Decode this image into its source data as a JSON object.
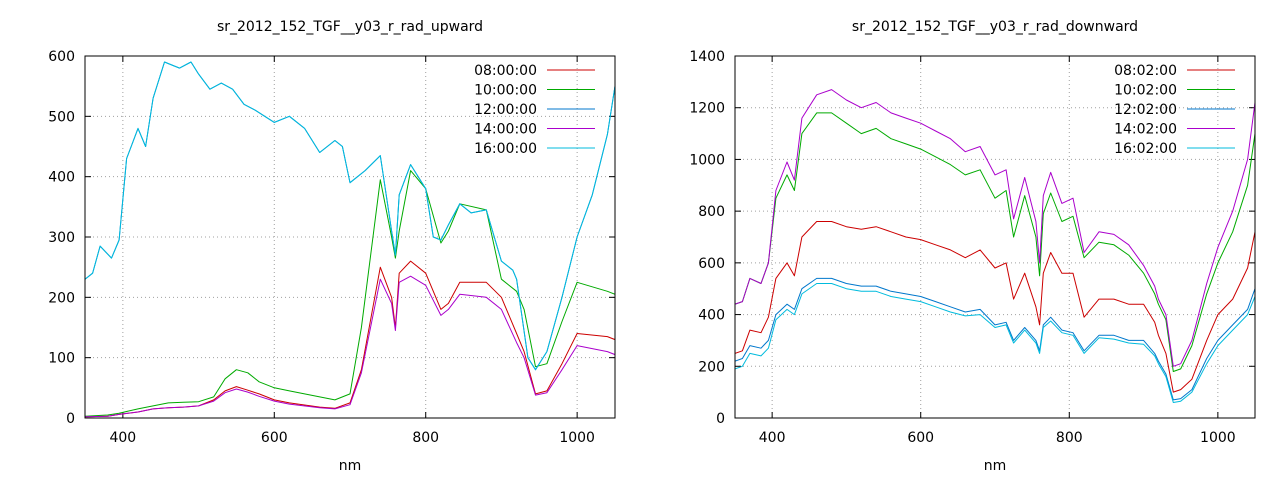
{
  "chart_data": [
    {
      "type": "line",
      "title": "sr_2012_152_TGF__y03_r_rad_upward",
      "xlabel": "nm",
      "ylabel": "",
      "xlim": [
        350,
        1050
      ],
      "ylim": [
        0,
        600
      ],
      "xticks": [
        400,
        600,
        800,
        1000
      ],
      "yticks": [
        0,
        100,
        200,
        300,
        400,
        500,
        600
      ],
      "grid": true,
      "legend_position": "top-right",
      "series": [
        {
          "name": "08:00:00",
          "color": "#cc0000",
          "x": [
            350,
            380,
            395,
            420,
            440,
            460,
            480,
            500,
            520,
            535,
            550,
            565,
            580,
            600,
            620,
            660,
            680,
            700,
            715,
            740,
            755,
            760,
            765,
            780,
            800,
            820,
            830,
            845,
            880,
            900,
            920,
            930,
            945,
            960,
            980,
            1000,
            1040,
            1050
          ],
          "y": [
            2,
            3,
            6,
            10,
            15,
            17,
            18,
            20,
            30,
            45,
            52,
            46,
            40,
            30,
            25,
            18,
            16,
            25,
            80,
            250,
            200,
            150,
            240,
            260,
            240,
            180,
            190,
            225,
            225,
            200,
            140,
            110,
            40,
            45,
            90,
            140,
            135,
            130
          ]
        },
        {
          "name": "10:00:00",
          "color": "#00aa00",
          "x": [
            350,
            380,
            395,
            420,
            440,
            460,
            480,
            500,
            520,
            535,
            550,
            565,
            580,
            600,
            620,
            660,
            680,
            700,
            715,
            740,
            755,
            760,
            765,
            780,
            800,
            820,
            830,
            845,
            880,
            900,
            920,
            930,
            945,
            960,
            980,
            1000,
            1040,
            1050
          ],
          "y": [
            3,
            5,
            8,
            15,
            20,
            25,
            26,
            27,
            35,
            65,
            80,
            75,
            60,
            50,
            45,
            35,
            30,
            40,
            150,
            395,
            300,
            265,
            310,
            410,
            380,
            290,
            310,
            355,
            345,
            230,
            210,
            180,
            85,
            90,
            160,
            225,
            210,
            205
          ]
        },
        {
          "name": "12:00:00",
          "color": "#0077cc",
          "x": [
            350,
            360,
            370,
            385,
            395,
            405,
            420,
            430,
            440,
            455,
            465,
            475,
            490,
            500,
            515,
            530,
            545,
            560,
            575,
            600,
            620,
            640,
            660,
            680,
            690,
            700,
            720,
            740,
            755,
            760,
            765,
            780,
            800,
            810,
            820,
            830,
            845,
            860,
            880,
            900,
            915,
            920,
            935,
            945,
            960,
            980,
            1000,
            1020,
            1040,
            1050
          ],
          "y": [
            230,
            240,
            285,
            265,
            295,
            430,
            480,
            450,
            530,
            590,
            585,
            580,
            590,
            570,
            545,
            555,
            545,
            520,
            510,
            490,
            500,
            480,
            440,
            460,
            450,
            390,
            410,
            435,
            310,
            270,
            370,
            420,
            380,
            300,
            295,
            320,
            355,
            340,
            345,
            260,
            245,
            230,
            100,
            80,
            110,
            200,
            300,
            370,
            470,
            550
          ]
        },
        {
          "name": "14:00:00",
          "color": "#aa00cc",
          "x": [
            350,
            380,
            395,
            420,
            440,
            460,
            480,
            500,
            520,
            535,
            550,
            565,
            580,
            600,
            620,
            660,
            680,
            700,
            715,
            740,
            755,
            760,
            765,
            780,
            800,
            820,
            830,
            845,
            880,
            900,
            920,
            930,
            945,
            960,
            980,
            1000,
            1040,
            1050
          ],
          "y": [
            2,
            3,
            6,
            10,
            15,
            17,
            18,
            20,
            28,
            42,
            48,
            43,
            36,
            28,
            23,
            17,
            15,
            22,
            75,
            230,
            190,
            145,
            225,
            235,
            220,
            170,
            180,
            205,
            200,
            180,
            125,
            100,
            38,
            42,
            80,
            120,
            110,
            105
          ]
        },
        {
          "name": "16:00:00",
          "color": "#00bbdd",
          "x": [
            350,
            360,
            370,
            385,
            395,
            405,
            420,
            430,
            440,
            455,
            465,
            475,
            490,
            500,
            515,
            530,
            545,
            560,
            575,
            600,
            620,
            640,
            660,
            680,
            690,
            700,
            720,
            740,
            755,
            760,
            765,
            780,
            800,
            810,
            820,
            830,
            845,
            860,
            880,
            900,
            915,
            920,
            935,
            945,
            960,
            980,
            1000,
            1020,
            1040,
            1050
          ],
          "y": [
            230,
            240,
            285,
            265,
            295,
            430,
            480,
            450,
            530,
            590,
            585,
            580,
            590,
            570,
            545,
            555,
            545,
            520,
            510,
            490,
            500,
            480,
            440,
            460,
            450,
            390,
            410,
            435,
            310,
            270,
            370,
            420,
            380,
            300,
            295,
            320,
            355,
            340,
            345,
            260,
            245,
            230,
            100,
            80,
            110,
            200,
            300,
            370,
            470,
            550
          ]
        }
      ]
    },
    {
      "type": "line",
      "title": "sr_2012_152_TGF__y03_r_rad_downward",
      "xlabel": "nm",
      "ylabel": "",
      "xlim": [
        350,
        1050
      ],
      "ylim": [
        0,
        1400
      ],
      "xticks": [
        400,
        600,
        800,
        1000
      ],
      "yticks": [
        0,
        200,
        400,
        600,
        800,
        1000,
        1200,
        1400
      ],
      "grid": true,
      "legend_position": "top-right",
      "series": [
        {
          "name": "08:02:00",
          "color": "#cc0000",
          "x": [
            350,
            360,
            370,
            385,
            395,
            405,
            420,
            430,
            440,
            460,
            480,
            500,
            520,
            540,
            560,
            580,
            600,
            620,
            640,
            660,
            680,
            700,
            715,
            725,
            740,
            755,
            760,
            765,
            775,
            790,
            805,
            820,
            840,
            860,
            880,
            900,
            915,
            920,
            930,
            940,
            950,
            965,
            985,
            1000,
            1020,
            1040,
            1050
          ],
          "y": [
            250,
            260,
            340,
            330,
            390,
            540,
            600,
            550,
            700,
            760,
            760,
            740,
            730,
            740,
            720,
            700,
            690,
            670,
            650,
            620,
            650,
            580,
            600,
            460,
            560,
            430,
            360,
            560,
            640,
            560,
            560,
            390,
            460,
            460,
            440,
            440,
            370,
            320,
            250,
            100,
            110,
            150,
            300,
            400,
            460,
            580,
            720
          ]
        },
        {
          "name": "10:02:00",
          "color": "#00aa00",
          "x": [
            350,
            360,
            370,
            385,
            395,
            405,
            420,
            430,
            440,
            460,
            480,
            500,
            520,
            540,
            560,
            580,
            600,
            620,
            640,
            660,
            680,
            700,
            715,
            725,
            740,
            755,
            760,
            765,
            775,
            790,
            805,
            820,
            840,
            860,
            880,
            900,
            915,
            920,
            930,
            940,
            950,
            965,
            985,
            1000,
            1020,
            1040,
            1050
          ],
          "y": [
            440,
            450,
            540,
            520,
            600,
            850,
            940,
            880,
            1100,
            1180,
            1180,
            1140,
            1100,
            1120,
            1080,
            1060,
            1040,
            1010,
            980,
            940,
            960,
            850,
            880,
            700,
            860,
            700,
            550,
            790,
            870,
            760,
            780,
            620,
            680,
            670,
            630,
            560,
            480,
            440,
            380,
            180,
            190,
            280,
            480,
            600,
            720,
            900,
            1100
          ]
        },
        {
          "name": "12:02:00",
          "color": "#0077cc",
          "x": [
            350,
            360,
            370,
            385,
            395,
            405,
            420,
            430,
            440,
            460,
            480,
            500,
            520,
            540,
            560,
            580,
            600,
            620,
            640,
            660,
            680,
            700,
            715,
            725,
            740,
            755,
            760,
            765,
            775,
            790,
            805,
            820,
            840,
            860,
            880,
            900,
            915,
            920,
            930,
            940,
            950,
            965,
            985,
            1000,
            1020,
            1040,
            1050
          ],
          "y": [
            220,
            230,
            280,
            270,
            300,
            400,
            440,
            420,
            500,
            540,
            540,
            520,
            510,
            510,
            490,
            480,
            470,
            450,
            430,
            410,
            420,
            360,
            370,
            300,
            350,
            300,
            260,
            360,
            390,
            340,
            330,
            260,
            320,
            320,
            300,
            300,
            250,
            220,
            170,
            70,
            75,
            110,
            230,
            300,
            360,
            420,
            500
          ]
        },
        {
          "name": "14:02:00",
          "color": "#aa00cc",
          "x": [
            350,
            360,
            370,
            385,
            395,
            405,
            420,
            430,
            440,
            460,
            480,
            500,
            520,
            540,
            560,
            580,
            600,
            620,
            640,
            660,
            680,
            700,
            715,
            725,
            740,
            755,
            760,
            765,
            775,
            790,
            805,
            820,
            840,
            860,
            880,
            900,
            915,
            920,
            930,
            940,
            950,
            965,
            985,
            1000,
            1020,
            1040,
            1050
          ],
          "y": [
            440,
            450,
            540,
            520,
            600,
            880,
            990,
            920,
            1160,
            1250,
            1270,
            1230,
            1200,
            1220,
            1180,
            1160,
            1140,
            1110,
            1080,
            1030,
            1050,
            940,
            960,
            770,
            930,
            760,
            600,
            860,
            950,
            830,
            850,
            640,
            720,
            710,
            670,
            590,
            510,
            460,
            400,
            200,
            210,
            300,
            520,
            660,
            800,
            1000,
            1220
          ]
        },
        {
          "name": "16:02:00",
          "color": "#00bbdd",
          "x": [
            350,
            360,
            370,
            385,
            395,
            405,
            420,
            430,
            440,
            460,
            480,
            500,
            520,
            540,
            560,
            580,
            600,
            620,
            640,
            660,
            680,
            700,
            715,
            725,
            740,
            755,
            760,
            765,
            775,
            790,
            805,
            820,
            840,
            860,
            880,
            900,
            915,
            920,
            930,
            940,
            950,
            965,
            985,
            1000,
            1020,
            1040,
            1050
          ],
          "y": [
            190,
            200,
            250,
            240,
            270,
            380,
            420,
            400,
            480,
            520,
            520,
            500,
            490,
            490,
            470,
            460,
            450,
            430,
            410,
            395,
            400,
            350,
            360,
            290,
            340,
            290,
            250,
            350,
            375,
            330,
            320,
            250,
            310,
            305,
            290,
            285,
            240,
            210,
            160,
            60,
            65,
            100,
            210,
            280,
            340,
            400,
            470
          ]
        }
      ]
    }
  ]
}
